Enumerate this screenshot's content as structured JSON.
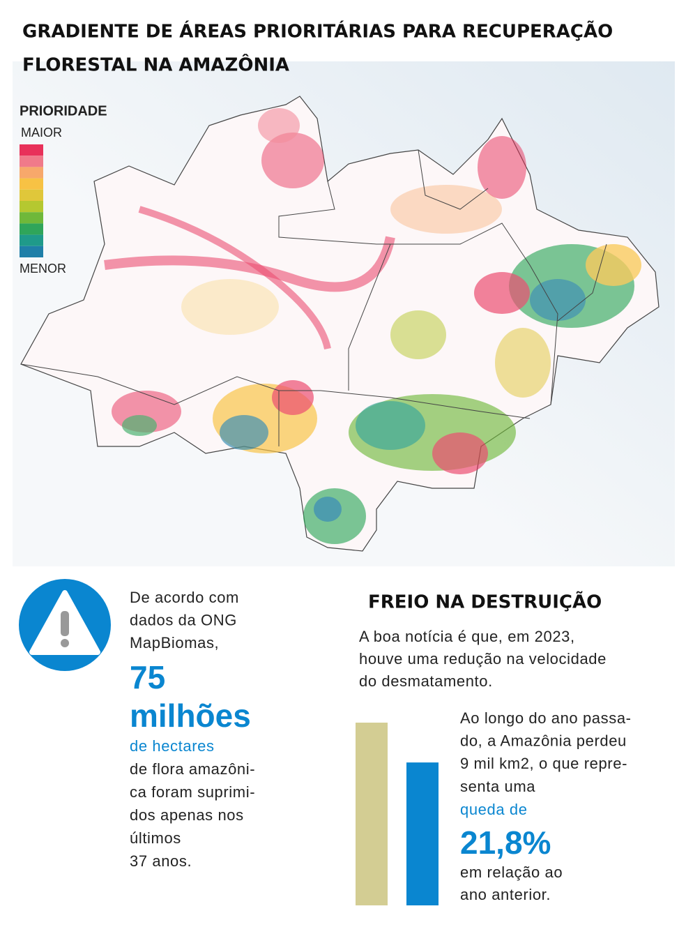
{
  "header": {
    "title_lines": [
      "GRADIENTE DE ÁREAS PRIORITÁRIAS PARA RECUPERAÇÃO",
      "FLORESTAL NA AMAZÔNIA"
    ]
  },
  "legend": {
    "title": "PRIORIDADE",
    "max_label": "MAIOR",
    "min_label": "MENOR",
    "colors": [
      "#e8315a",
      "#f07a8a",
      "#f7a86b",
      "#f7c244",
      "#e0c73a",
      "#b5c830",
      "#6fb83a",
      "#2fa55a",
      "#1f9a8a",
      "#1f7fa8"
    ]
  },
  "left_panel": {
    "intro_lines": [
      "De acordo com",
      "dados da ONG",
      "MapBiomas,"
    ],
    "number": "75",
    "unit": "milhões",
    "unit_detail": "de hectares",
    "body_lines": [
      "de flora amazôni-",
      "ca foram suprimi-",
      "dos apenas nos",
      "últimos",
      "37 anos."
    ]
  },
  "right_panel": {
    "title": "FREIO NA DESTRUIÇÃO",
    "intro_lines": [
      "A boa notícia é que, em 2023,",
      "houve uma redução na velocidade",
      "do desmatamento."
    ],
    "body_lines": [
      "Ao longo do ano passa-",
      "do, a Amazônia perdeu",
      "9 mil km2, o que repre-",
      "senta uma"
    ],
    "highlight_label": "queda de",
    "highlight_value": "21,8%",
    "outro_lines": [
      "em relação ao",
      "ano anterior."
    ],
    "bars": {
      "values": [
        100,
        78.2
      ],
      "colors": [
        "#d3cd93",
        "#0a86d0"
      ]
    }
  }
}
